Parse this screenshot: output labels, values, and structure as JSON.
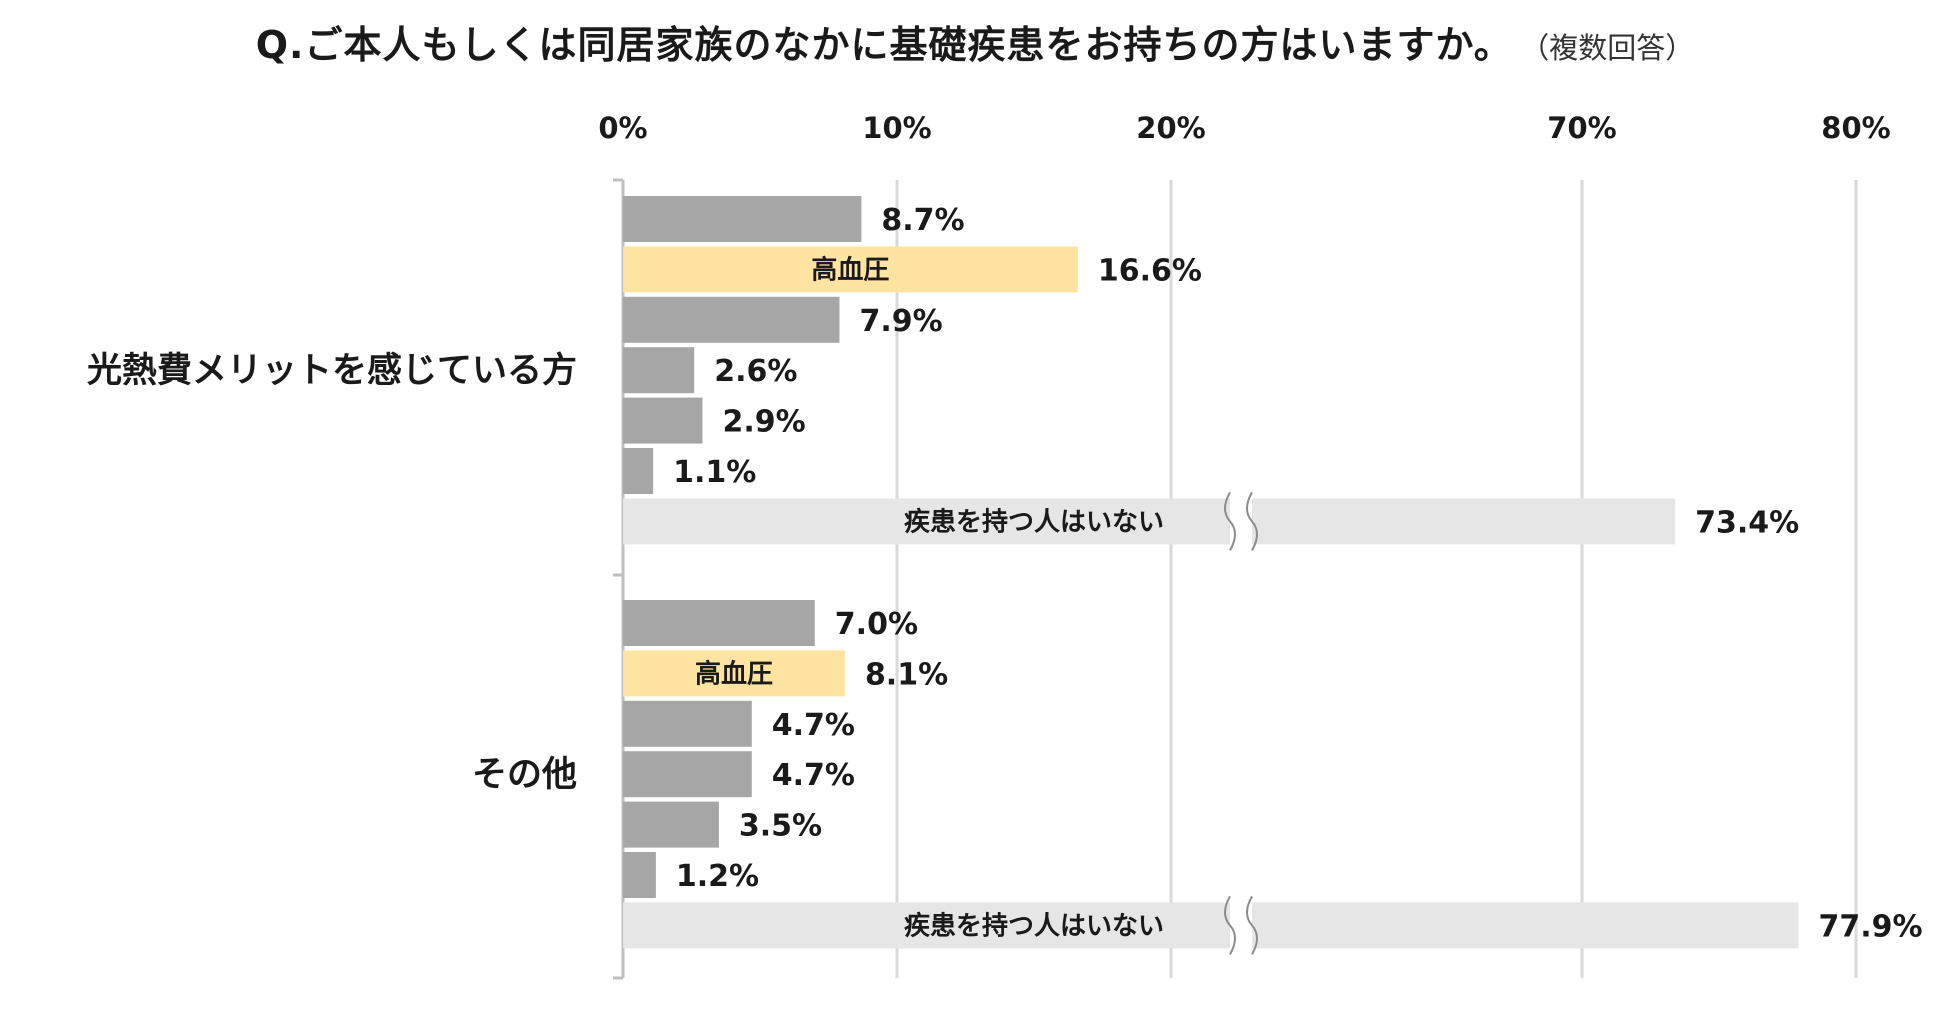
{
  "title": "Q.ご本人もしくは同居家族のなかに基礎疾患をお持ちの方はいますか。",
  "subtitle": "（複数回答）",
  "colors": {
    "bar_default": "#a6a6a6",
    "bar_highlight": "#ffe4a1",
    "bar_none": "#e6e6e6",
    "grid": "#d9d9d9",
    "axis": "#bfbfbf"
  },
  "chart_data": {
    "type": "bar",
    "orientation": "horizontal",
    "axis_break": {
      "from": 25,
      "to": 60
    },
    "x_ticks": [
      {
        "value": 0,
        "label": "0%"
      },
      {
        "value": 10,
        "label": "10%"
      },
      {
        "value": 20,
        "label": "20%"
      },
      {
        "value": 70,
        "label": "70%"
      },
      {
        "value": 80,
        "label": "80%"
      }
    ],
    "grid": true,
    "groups": [
      {
        "name": "光熱費メリットを感じている方",
        "bars": [
          {
            "value": 8.7,
            "label": "8.7%",
            "style": "default",
            "inner": ""
          },
          {
            "value": 16.6,
            "label": "16.6%",
            "style": "highlight",
            "inner": "高血圧"
          },
          {
            "value": 7.9,
            "label": "7.9%",
            "style": "default",
            "inner": ""
          },
          {
            "value": 2.6,
            "label": "2.6%",
            "style": "default",
            "inner": ""
          },
          {
            "value": 2.9,
            "label": "2.9%",
            "style": "default",
            "inner": ""
          },
          {
            "value": 1.1,
            "label": "1.1%",
            "style": "default",
            "inner": ""
          },
          {
            "value": 73.4,
            "label": "73.4%",
            "style": "none",
            "inner": "疾患を持つ人はいない"
          }
        ]
      },
      {
        "name": "その他",
        "bars": [
          {
            "value": 7.0,
            "label": "7.0%",
            "style": "default",
            "inner": ""
          },
          {
            "value": 8.1,
            "label": "8.1%",
            "style": "highlight",
            "inner": "高血圧"
          },
          {
            "value": 4.7,
            "label": "4.7%",
            "style": "default",
            "inner": ""
          },
          {
            "value": 4.7,
            "label": "4.7%",
            "style": "default",
            "inner": ""
          },
          {
            "value": 3.5,
            "label": "3.5%",
            "style": "default",
            "inner": ""
          },
          {
            "value": 1.2,
            "label": "1.2%",
            "style": "default",
            "inner": ""
          },
          {
            "value": 77.9,
            "label": "77.9%",
            "style": "none",
            "inner": "疾患を持つ人はいない"
          }
        ]
      }
    ]
  }
}
